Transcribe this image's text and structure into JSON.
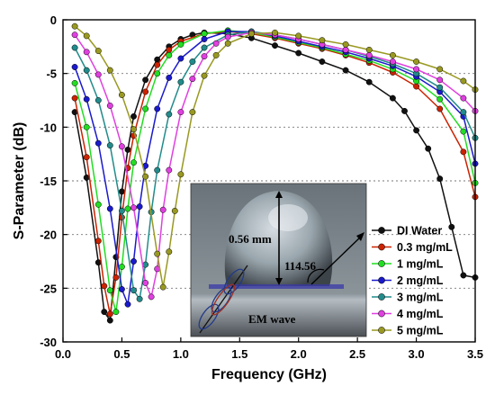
{
  "chart_data": {
    "type": "line",
    "title": "",
    "xlabel": "Frequency (GHz)",
    "ylabel": "S-Parameter (dB)",
    "xlim": [
      0.0,
      3.5
    ],
    "ylim": [
      -30,
      0
    ],
    "x_ticks": [
      "0.0",
      "0.5",
      "1.0",
      "1.5",
      "2.0",
      "2.5",
      "3.0",
      "3.5"
    ],
    "y_ticks": [
      "0",
      "-5",
      "-10",
      "-15",
      "-20",
      "-25",
      "-30"
    ],
    "grid": "dotted horizontal at -5, -10, -15, -20, -25",
    "legend_position": "lower-right",
    "series": [
      {
        "name": "DI Water",
        "color": "#111111",
        "x": [
          0.1,
          0.2,
          0.3,
          0.35,
          0.4,
          0.45,
          0.5,
          0.55,
          0.6,
          0.7,
          0.8,
          0.9,
          1.0,
          1.1,
          1.2,
          1.4,
          1.6,
          1.8,
          2.0,
          2.2,
          2.4,
          2.6,
          2.8,
          2.9,
          3.0,
          3.1,
          3.2,
          3.3,
          3.4,
          3.5
        ],
        "y": [
          -8.6,
          -14.7,
          -22.6,
          -27.2,
          -28.0,
          -22.1,
          -16.0,
          -12.1,
          -9.0,
          -5.6,
          -3.7,
          -2.5,
          -1.8,
          -1.4,
          -1.2,
          -1.3,
          -1.7,
          -2.4,
          -3.1,
          -3.9,
          -4.7,
          -5.8,
          -7.3,
          -8.5,
          -10.3,
          -12.0,
          -14.8,
          -19.3,
          -23.8,
          -24.0
        ]
      },
      {
        "name": "0.3 mg/mL",
        "color": "#cc2200",
        "x": [
          0.1,
          0.2,
          0.3,
          0.35,
          0.4,
          0.45,
          0.5,
          0.55,
          0.6,
          0.7,
          0.8,
          0.9,
          1.0,
          1.2,
          1.4,
          1.6,
          1.8,
          2.0,
          2.2,
          2.4,
          2.6,
          2.8,
          3.0,
          3.2,
          3.4,
          3.5
        ],
        "y": [
          -7.3,
          -12.8,
          -20.6,
          -24.8,
          -27.4,
          -24.0,
          -18.4,
          -13.8,
          -10.8,
          -6.7,
          -4.2,
          -2.8,
          -2.0,
          -1.3,
          -1.1,
          -1.3,
          -1.7,
          -2.2,
          -2.7,
          -3.3,
          -4.0,
          -4.9,
          -6.2,
          -8.3,
          -12.3,
          -16.5
        ]
      },
      {
        "name": "1 mg/mL",
        "color": "#22dd22",
        "x": [
          0.1,
          0.2,
          0.3,
          0.4,
          0.45,
          0.5,
          0.55,
          0.6,
          0.7,
          0.8,
          0.9,
          1.0,
          1.2,
          1.4,
          1.6,
          1.8,
          2.0,
          2.2,
          2.4,
          2.6,
          2.8,
          3.0,
          3.2,
          3.4,
          3.5
        ],
        "y": [
          -5.9,
          -10.0,
          -17.2,
          -25.2,
          -27.2,
          -23.0,
          -17.6,
          -13.3,
          -8.3,
          -5.0,
          -3.3,
          -2.3,
          -1.3,
          -1.0,
          -1.2,
          -1.6,
          -2.1,
          -2.6,
          -3.2,
          -3.8,
          -4.6,
          -5.7,
          -7.4,
          -10.4,
          -15.2
        ]
      },
      {
        "name": "2 mg/mL",
        "color": "#1a1acc",
        "x": [
          0.1,
          0.2,
          0.3,
          0.4,
          0.5,
          0.55,
          0.6,
          0.65,
          0.7,
          0.8,
          0.9,
          1.0,
          1.2,
          1.4,
          1.6,
          1.8,
          2.0,
          2.2,
          2.4,
          2.6,
          2.8,
          3.0,
          3.2,
          3.4,
          3.5
        ],
        "y": [
          -4.4,
          -7.4,
          -11.5,
          -17.6,
          -25.1,
          -26.5,
          -22.5,
          -17.4,
          -13.6,
          -8.3,
          -5.4,
          -3.6,
          -1.8,
          -1.1,
          -1.1,
          -1.5,
          -2.0,
          -2.5,
          -3.0,
          -3.6,
          -4.3,
          -5.3,
          -6.7,
          -9.0,
          -13.4
        ]
      },
      {
        "name": "3 mg/mL",
        "color": "#228b8b",
        "x": [
          0.1,
          0.2,
          0.3,
          0.4,
          0.5,
          0.6,
          0.65,
          0.7,
          0.75,
          0.8,
          0.9,
          1.0,
          1.1,
          1.2,
          1.4,
          1.6,
          1.8,
          2.0,
          2.2,
          2.4,
          2.6,
          2.8,
          3.0,
          3.2,
          3.4,
          3.5
        ],
        "y": [
          -2.6,
          -4.7,
          -7.5,
          -11.7,
          -17.8,
          -25.2,
          -26.0,
          -22.8,
          -17.9,
          -14.0,
          -8.8,
          -5.8,
          -3.9,
          -2.6,
          -1.4,
          -1.1,
          -1.4,
          -1.8,
          -2.3,
          -2.8,
          -3.4,
          -4.1,
          -5.0,
          -6.3,
          -8.6,
          -11.0
        ]
      },
      {
        "name": "4 mg/mL",
        "color": "#e040e0",
        "x": [
          0.1,
          0.2,
          0.3,
          0.4,
          0.5,
          0.6,
          0.7,
          0.75,
          0.8,
          0.85,
          0.9,
          1.0,
          1.1,
          1.2,
          1.3,
          1.4,
          1.6,
          1.8,
          2.0,
          2.2,
          2.4,
          2.6,
          2.8,
          3.0,
          3.2,
          3.4,
          3.5
        ],
        "y": [
          -1.4,
          -3.0,
          -5.1,
          -8.0,
          -11.8,
          -17.5,
          -24.5,
          -25.8,
          -23.2,
          -17.7,
          -14.0,
          -8.6,
          -5.5,
          -3.4,
          -2.2,
          -1.6,
          -1.2,
          -1.4,
          -1.8,
          -2.3,
          -2.8,
          -3.3,
          -3.9,
          -4.6,
          -5.6,
          -7.3,
          -8.5
        ]
      },
      {
        "name": "5 mg/mL",
        "color": "#999922",
        "x": [
          0.1,
          0.2,
          0.3,
          0.4,
          0.5,
          0.6,
          0.7,
          0.8,
          0.85,
          0.9,
          0.95,
          1.0,
          1.1,
          1.2,
          1.3,
          1.4,
          1.6,
          1.8,
          2.0,
          2.2,
          2.4,
          2.6,
          2.8,
          3.0,
          3.2,
          3.4,
          3.5
        ],
        "y": [
          -0.6,
          -1.5,
          -2.9,
          -4.7,
          -7.0,
          -10.2,
          -14.6,
          -21.8,
          -24.9,
          -21.6,
          -17.8,
          -14.4,
          -8.6,
          -5.2,
          -3.3,
          -2.2,
          -1.3,
          -1.2,
          -1.5,
          -1.9,
          -2.3,
          -2.8,
          -3.3,
          -3.9,
          -4.6,
          -5.7,
          -6.5
        ]
      }
    ]
  },
  "inset_photo": {
    "height_label": "0.56 mm",
    "angle_label": "114.56",
    "wave_label": "EM wave"
  }
}
